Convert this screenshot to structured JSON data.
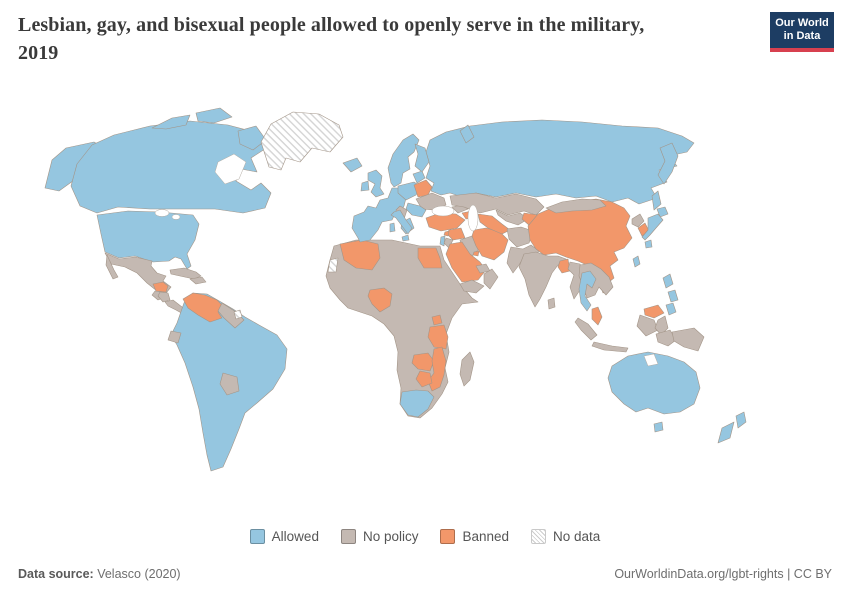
{
  "header": {
    "title_line1": "Lesbian, gay, and bisexual people allowed to openly serve in the military,",
    "title_line2": "2019"
  },
  "logo": {
    "line1": "Our World",
    "line2": "in Data",
    "bg": "#1d3d63",
    "accent": "#d7404f"
  },
  "legend": {
    "items": [
      {
        "key": "allowed",
        "label": "Allowed",
        "color": "#95c6e0"
      },
      {
        "key": "no_policy",
        "label": "No policy",
        "color": "#c4b9b2"
      },
      {
        "key": "banned",
        "label": "Banned",
        "color": "#f2976a"
      },
      {
        "key": "no_data",
        "label": "No data",
        "pattern": "hatch",
        "color": "#ffffff"
      }
    ]
  },
  "footer": {
    "source_label": "Data source:",
    "source_value": " Velasco (2020)",
    "right_text": "OurWorldinData.org/lgbt-rights | CC BY"
  },
  "chart_data": {
    "type": "choropleth",
    "title": "Lesbian, gay, and bisexual people allowed to openly serve in the military",
    "year": "2019",
    "legend_categories": [
      "Allowed",
      "No policy",
      "Banned",
      "No data"
    ],
    "colors": {
      "allowed": "#95c6e0",
      "no_policy": "#c4b9b2",
      "banned": "#f2976a",
      "no_data": "hatch"
    },
    "countries": {
      "allowed": [
        "United States",
        "Canada",
        "Colombia",
        "Peru",
        "Bolivia",
        "Brazil",
        "Chile",
        "Argentina",
        "Uruguay",
        "Iceland",
        "United Kingdom",
        "Ireland",
        "Norway",
        "Sweden",
        "Finland",
        "Denmark",
        "France",
        "Spain",
        "Portugal",
        "Belgium",
        "Netherlands",
        "Germany",
        "Switzerland",
        "Austria",
        "Italy",
        "Poland",
        "Czechia",
        "Slovakia",
        "Slovenia",
        "Croatia",
        "Estonia",
        "Latvia",
        "Lithuania",
        "Romania",
        "Bulgaria",
        "Greece",
        "Albania",
        "Russia",
        "Israel",
        "Japan",
        "Taiwan",
        "Philippines",
        "Thailand",
        "South Africa",
        "Australia",
        "New Zealand"
      ],
      "no_policy": [
        "Mexico",
        "Guatemala",
        "Nicaragua",
        "Panama",
        "Cuba",
        "Haiti",
        "Dominican Republic",
        "Ecuador",
        "Paraguay",
        "Guyana",
        "Suriname",
        "Morocco",
        "Tunisia",
        "Libya",
        "Mauritania",
        "Mali",
        "Niger",
        "Chad",
        "Sudan",
        "Ethiopia",
        "Somalia",
        "Kenya",
        "Senegal",
        "Guinea",
        "Ghana",
        "Cameroon",
        "DR Congo",
        "Angola",
        "Namibia",
        "Botswana",
        "Madagascar",
        "Ukraine",
        "Serbia",
        "Bosnia and Herzegovina",
        "Moldova",
        "Georgia",
        "Armenia",
        "Kazakhstan",
        "Uzbekistan",
        "Mongolia",
        "Afghanistan",
        "Pakistan",
        "India",
        "Nepal",
        "Sri Lanka",
        "Myanmar",
        "Laos",
        "Vietnam",
        "Cambodia",
        "Indonesia",
        "Papua New Guinea",
        "North Korea",
        "Iraq",
        "Jordan",
        "Yemen",
        "Oman",
        "United Arab Emirates",
        "Qatar"
      ],
      "banned": [
        "Honduras",
        "Venezuela",
        "Belarus",
        "Turkey",
        "Syria",
        "Lebanon",
        "Egypt",
        "Algeria",
        "Nigeria",
        "Saudi Arabia",
        "Kuwait",
        "Iran",
        "Azerbaijan",
        "Turkmenistan",
        "Kyrgyzstan",
        "Tajikistan",
        "China",
        "South Korea",
        "Bangladesh",
        "Malaysia",
        "Uganda",
        "Tanzania",
        "Zambia",
        "Zimbabwe",
        "Malawi",
        "Mozambique"
      ],
      "no_data": [
        "Greenland",
        "Western Sahara",
        "French Guiana"
      ]
    }
  }
}
